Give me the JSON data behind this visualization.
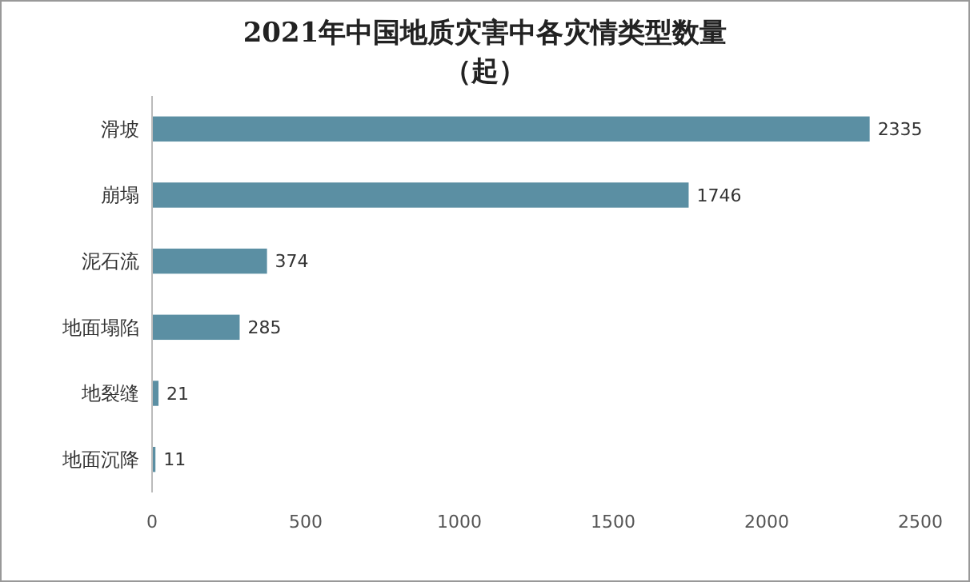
{
  "chart_data": {
    "type": "bar",
    "orientation": "horizontal",
    "title": "2021年中国地质灾害中各灾情类型数量（起）",
    "categories": [
      "滑坡",
      "崩塌",
      "泥石流",
      "地面塌陷",
      "地裂缝",
      "地面沉降"
    ],
    "values": [
      2335,
      1746,
      374,
      285,
      21,
      11
    ],
    "color": "#5b8fa3",
    "xlim": [
      0,
      2500
    ],
    "xticks": [
      0,
      500,
      1000,
      1500,
      2000,
      2500
    ],
    "data_labels": true
  }
}
